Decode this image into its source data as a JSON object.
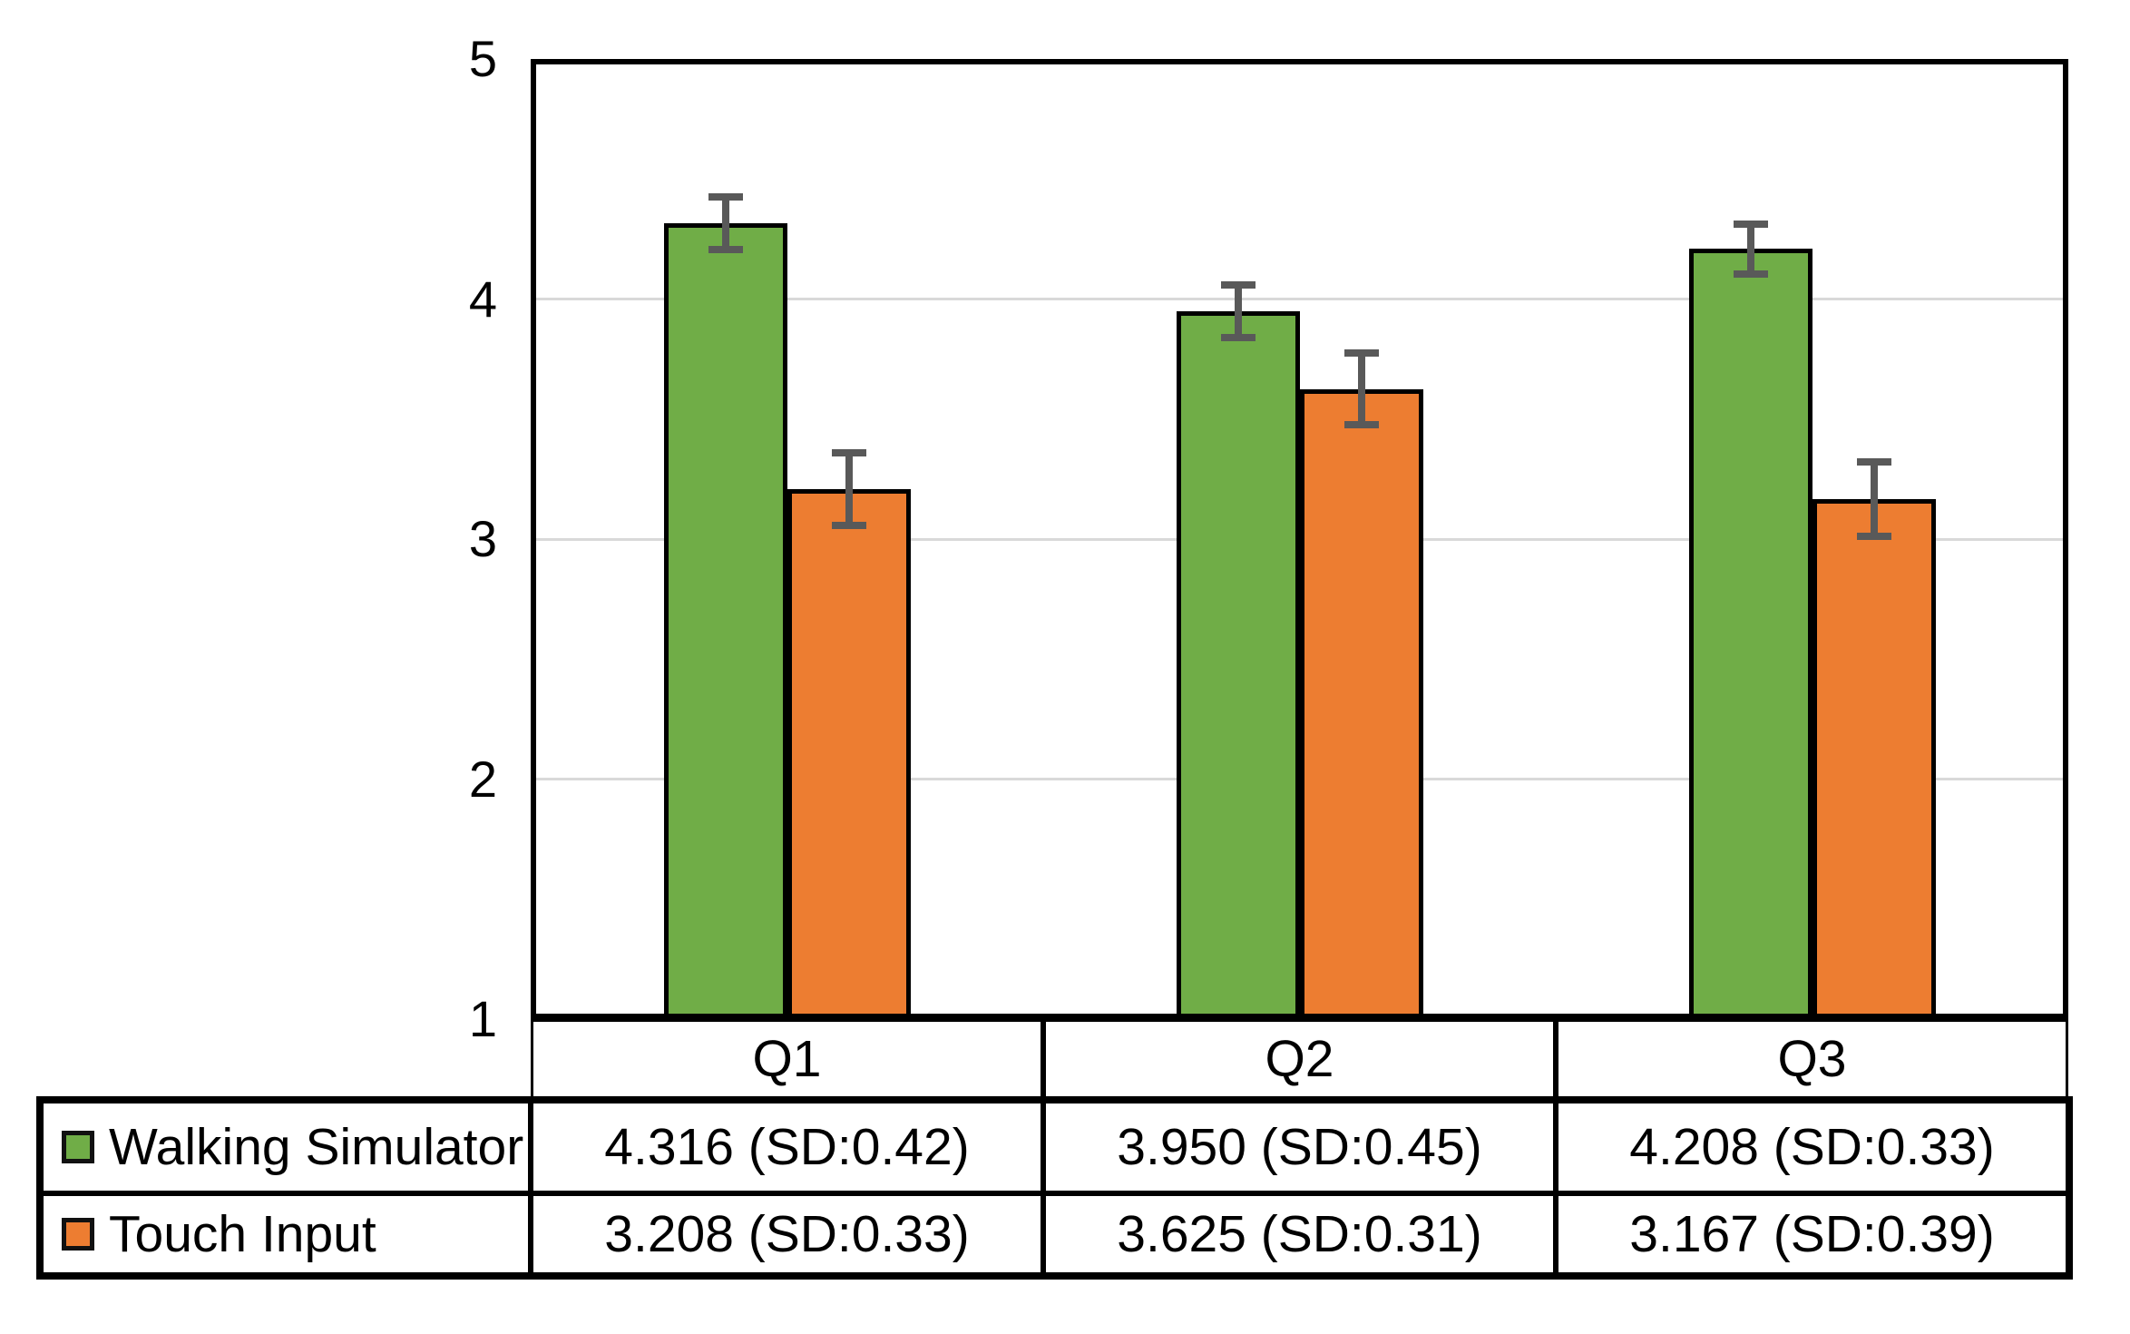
{
  "chart_data": {
    "type": "bar",
    "title": "",
    "categories": [
      "Q1",
      "Q2",
      "Q3"
    ],
    "series": [
      {
        "name": "Walking Simulator",
        "color": "#70AD47",
        "values": [
          4.316,
          3.95,
          4.208
        ],
        "sd": [
          0.42,
          0.45,
          0.33
        ],
        "error_bar_halfspan": [
          0.11,
          0.11,
          0.105
        ]
      },
      {
        "name": "Touch Input",
        "color": "#ED7D31",
        "values": [
          3.208,
          3.625,
          3.167
        ],
        "sd": [
          0.33,
          0.31,
          0.39
        ],
        "error_bar_halfspan": [
          0.15,
          0.15,
          0.155
        ]
      }
    ],
    "ylim": [
      1,
      5
    ],
    "yticks": [
      1,
      2,
      3,
      4,
      5
    ],
    "grid": true,
    "legend_position": "table-left",
    "error_bar_color": "#595959",
    "gridline_color": "#d9d9d9",
    "table_cells": [
      [
        "4.316 (SD:0.42)",
        "3.950 (SD:0.45)",
        "4.208 (SD:0.33)"
      ],
      [
        "3.208 (SD:0.33)",
        "3.625 (SD:0.31)",
        "3.167 (SD:0.39)"
      ]
    ]
  }
}
